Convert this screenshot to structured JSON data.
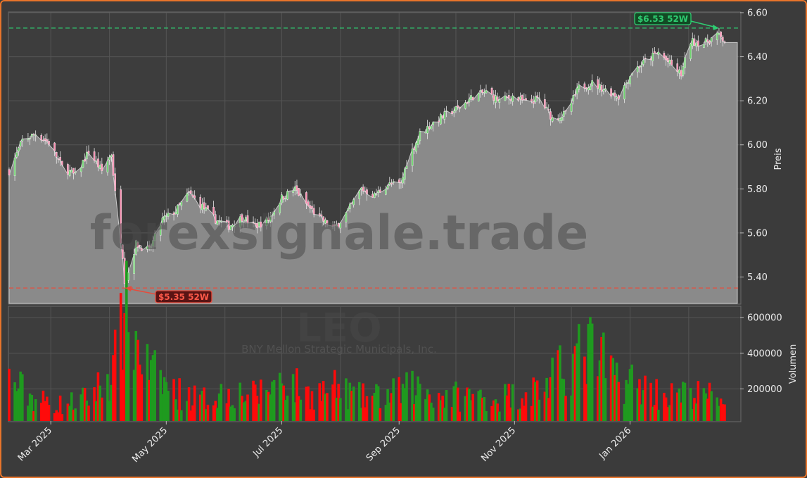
{
  "chart_data": [
    {
      "type": "candlestick",
      "ticker": "LEO",
      "subtitle": "BNY Mellon Strategic Municipals, Inc.",
      "watermark": "forexsignale.trade",
      "ylabel": "Preis",
      "ylim": [
        5.28,
        6.6
      ],
      "yticks": [
        "5.40",
        "5.60",
        "5.80",
        "6.00",
        "6.20",
        "6.40",
        "6.60"
      ],
      "xticks": [
        "Mar 2025",
        "May 2025",
        "Jul 2025",
        "Sep 2025",
        "Nov 2025",
        "Jan 2026"
      ],
      "grid": true,
      "high_52w": {
        "value": 6.53,
        "label": "$6.53 52W",
        "color": "#2ecc71"
      },
      "low_52w": {
        "value": 5.35,
        "label": "$5.35 52W",
        "color": "#e74c3c"
      },
      "close_trend": [
        [
          "2025-02-07",
          5.88
        ],
        [
          "2025-02-14",
          6.02
        ],
        [
          "2025-02-21",
          6.05
        ],
        [
          "2025-02-28",
          6.01
        ],
        [
          "2025-03-07",
          5.9
        ],
        [
          "2025-03-14",
          5.86
        ],
        [
          "2025-03-21",
          5.97
        ],
        [
          "2025-03-28",
          5.88
        ],
        [
          "2025-04-02",
          5.96
        ],
        [
          "2025-04-04",
          5.78
        ],
        [
          "2025-04-08",
          5.5
        ],
        [
          "2025-04-09",
          5.36
        ],
        [
          "2025-04-15",
          5.55
        ],
        [
          "2025-04-22",
          5.52
        ],
        [
          "2025-04-29",
          5.66
        ],
        [
          "2025-05-06",
          5.7
        ],
        [
          "2025-05-13",
          5.78
        ],
        [
          "2025-05-20",
          5.72
        ],
        [
          "2025-05-27",
          5.66
        ],
        [
          "2025-06-03",
          5.63
        ],
        [
          "2025-06-10",
          5.67
        ],
        [
          "2025-06-17",
          5.63
        ],
        [
          "2025-06-24",
          5.66
        ],
        [
          "2025-07-01",
          5.76
        ],
        [
          "2025-07-08",
          5.8
        ],
        [
          "2025-07-15",
          5.72
        ],
        [
          "2025-07-22",
          5.66
        ],
        [
          "2025-07-29",
          5.62
        ],
        [
          "2025-08-05",
          5.7
        ],
        [
          "2025-08-12",
          5.8
        ],
        [
          "2025-08-19",
          5.77
        ],
        [
          "2025-08-26",
          5.82
        ],
        [
          "2025-09-02",
          5.82
        ],
        [
          "2025-09-05",
          5.92
        ],
        [
          "2025-09-12",
          6.05
        ],
        [
          "2025-09-19",
          6.1
        ],
        [
          "2025-09-26",
          6.14
        ],
        [
          "2025-10-03",
          6.17
        ],
        [
          "2025-10-10",
          6.22
        ],
        [
          "2025-10-17",
          6.24
        ],
        [
          "2025-10-24",
          6.2
        ],
        [
          "2025-10-31",
          6.22
        ],
        [
          "2025-11-07",
          6.19
        ],
        [
          "2025-11-14",
          6.21
        ],
        [
          "2025-11-21",
          6.12
        ],
        [
          "2025-11-28",
          6.14
        ],
        [
          "2025-12-05",
          6.26
        ],
        [
          "2025-12-12",
          6.28
        ],
        [
          "2025-12-19",
          6.25
        ],
        [
          "2025-12-26",
          6.22
        ],
        [
          "2026-01-02",
          6.33
        ],
        [
          "2026-01-09",
          6.38
        ],
        [
          "2026-01-16",
          6.42
        ],
        [
          "2026-01-23",
          6.36
        ],
        [
          "2026-01-28",
          6.32
        ],
        [
          "2026-02-02",
          6.47
        ],
        [
          "2026-02-09",
          6.46
        ],
        [
          "2026-02-16",
          6.5
        ],
        [
          "2026-02-20",
          6.47
        ]
      ]
    },
    {
      "type": "bar",
      "ylabel": "Volumen",
      "ylim": [
        20000,
        660000
      ],
      "yticks": [
        "200000",
        "400000",
        "600000"
      ],
      "grid": true,
      "up_color": "#1f9a1f",
      "down_color": "#ff0a0a",
      "volume_profile": [
        [
          "2025-02-07",
          250000
        ],
        [
          "2025-02-21",
          140000
        ],
        [
          "2025-03-07",
          110000
        ],
        [
          "2025-03-21",
          150000
        ],
        [
          "2025-04-03",
          300000
        ],
        [
          "2025-04-09",
          620000
        ],
        [
          "2025-04-22",
          300000
        ],
        [
          "2025-05-06",
          180000
        ],
        [
          "2025-05-20",
          140000
        ],
        [
          "2025-06-03",
          190000
        ],
        [
          "2025-06-17",
          160000
        ],
        [
          "2025-07-01",
          260000
        ],
        [
          "2025-07-15",
          170000
        ],
        [
          "2025-07-29",
          200000
        ],
        [
          "2025-08-12",
          150000
        ],
        [
          "2025-08-26",
          160000
        ],
        [
          "2025-09-09",
          210000
        ],
        [
          "2025-09-23",
          160000
        ],
        [
          "2025-10-07",
          160000
        ],
        [
          "2025-10-21",
          150000
        ],
        [
          "2025-11-04",
          170000
        ],
        [
          "2025-11-18",
          220000
        ],
        [
          "2025-12-02",
          360000
        ],
        [
          "2025-12-11",
          420000
        ],
        [
          "2025-12-23",
          280000
        ],
        [
          "2026-01-06",
          220000
        ],
        [
          "2026-01-20",
          160000
        ],
        [
          "2026-02-03",
          170000
        ],
        [
          "2026-02-20",
          150000
        ]
      ]
    }
  ]
}
